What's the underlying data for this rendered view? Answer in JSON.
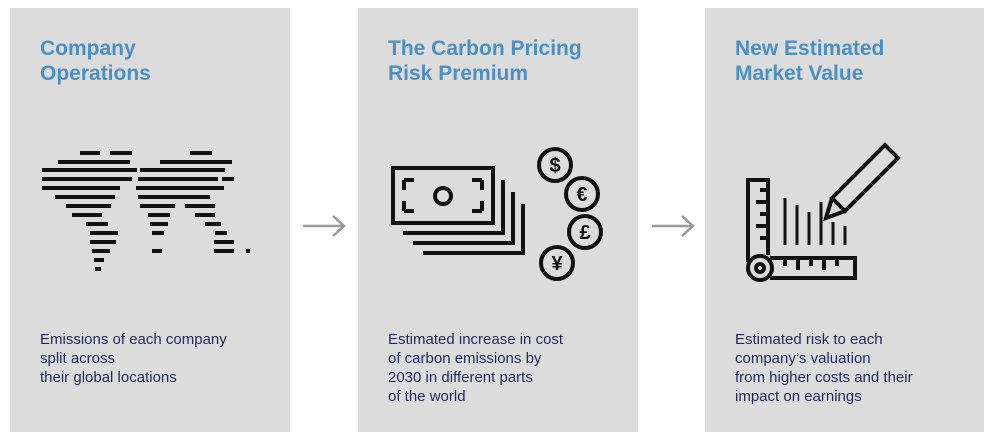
{
  "panels": [
    {
      "title": [
        "Company",
        "Operations"
      ],
      "description": [
        "Emissions of each company",
        "split across",
        "their global locations"
      ]
    },
    {
      "title": [
        "The Carbon Pricing",
        "Risk Premium"
      ],
      "description": [
        "Estimated increase in cost",
        "of carbon emissions by",
        "2030 in different parts",
        "of the world"
      ],
      "symbols": [
        "$",
        "€",
        "£",
        "¥"
      ]
    },
    {
      "title": [
        "New Estimated",
        "Market Value"
      ],
      "description": [
        "Estimated risk to each",
        "company’s valuation",
        "from higher costs and their",
        "impact on earnings"
      ]
    }
  ]
}
